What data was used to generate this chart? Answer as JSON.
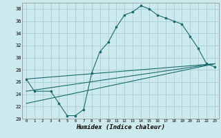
{
  "xlabel": "Humidex (Indice chaleur)",
  "xlim": [
    -0.5,
    23.5
  ],
  "ylim": [
    20,
    39
  ],
  "xticks": [
    0,
    1,
    2,
    3,
    4,
    5,
    6,
    7,
    8,
    9,
    10,
    11,
    12,
    13,
    14,
    15,
    16,
    17,
    18,
    19,
    20,
    21,
    22,
    23
  ],
  "yticks": [
    20,
    22,
    24,
    26,
    28,
    30,
    32,
    34,
    36,
    38
  ],
  "bg_color": "#cce9ee",
  "grid_color": "#aacdd4",
  "line_color": "#1a6b6b",
  "line1_x": [
    0,
    1,
    3,
    4,
    5,
    6,
    7,
    8,
    9,
    10,
    11,
    12,
    13,
    14,
    15,
    16,
    17,
    18,
    19,
    20,
    21,
    22,
    23
  ],
  "line1_y": [
    26.5,
    24.5,
    24.5,
    22.5,
    20.5,
    20.5,
    21.5,
    27.5,
    31.0,
    32.5,
    35.0,
    37.0,
    37.5,
    38.5,
    38.0,
    37.0,
    36.5,
    36.0,
    35.5,
    33.5,
    31.5,
    29.0,
    28.5
  ],
  "line2_x": [
    0,
    23
  ],
  "line2_y": [
    26.5,
    29.0
  ],
  "line3_x": [
    0,
    23
  ],
  "line3_y": [
    24.5,
    29.0
  ],
  "line4_x": [
    0,
    23
  ],
  "line4_y": [
    22.5,
    29.0
  ]
}
